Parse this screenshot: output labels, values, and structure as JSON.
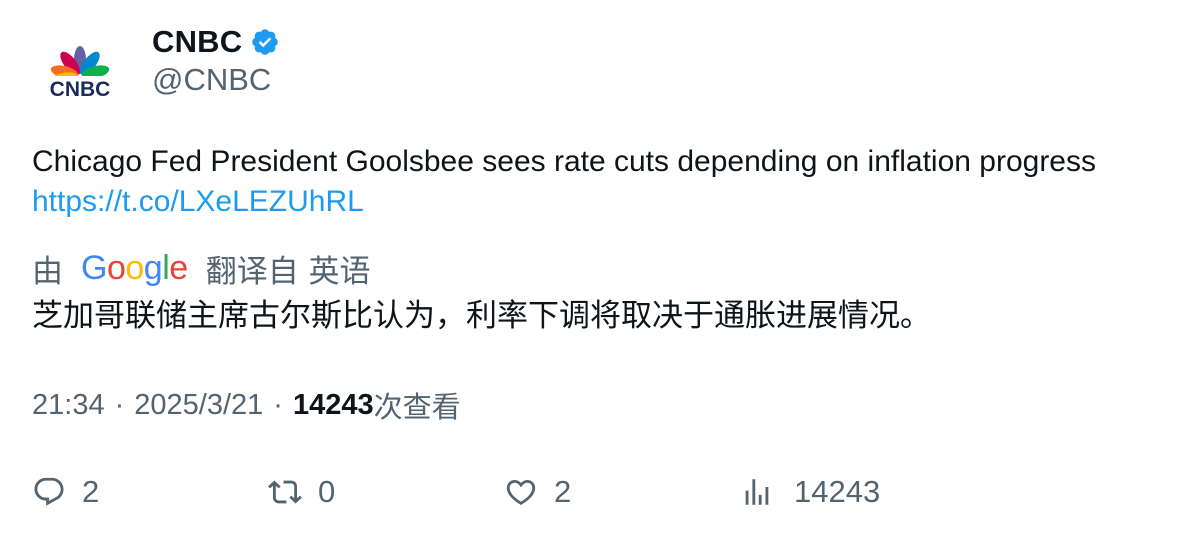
{
  "account": {
    "name": "CNBC",
    "handle": "@CNBC",
    "logo_text": "CNBC"
  },
  "tweet": {
    "text": "Chicago Fed President Goolsbee sees rate cuts depending on inflation progress ",
    "link": "https://t.co/LXeLEZUhRL"
  },
  "translation": {
    "by_label": "由",
    "provider": "Google",
    "from_label": "翻译自 英语",
    "text": "芝加哥联储主席古尔斯比认为，利率下调将取决于通胀进展情况。"
  },
  "meta": {
    "time": "21:34",
    "separator": "·",
    "date": "2025/3/21",
    "views_count": "14243",
    "views_label": "次查看"
  },
  "actions": {
    "reply_count": "2",
    "retweet_count": "0",
    "like_count": "2",
    "views_count": "14243"
  },
  "colors": {
    "link": "#1d9bf0",
    "muted": "#536471",
    "text": "#0f1419",
    "verified": "#1d9bf0"
  },
  "icons": [
    "verified-badge-icon",
    "reply-icon",
    "retweet-icon",
    "like-icon",
    "views-icon"
  ]
}
